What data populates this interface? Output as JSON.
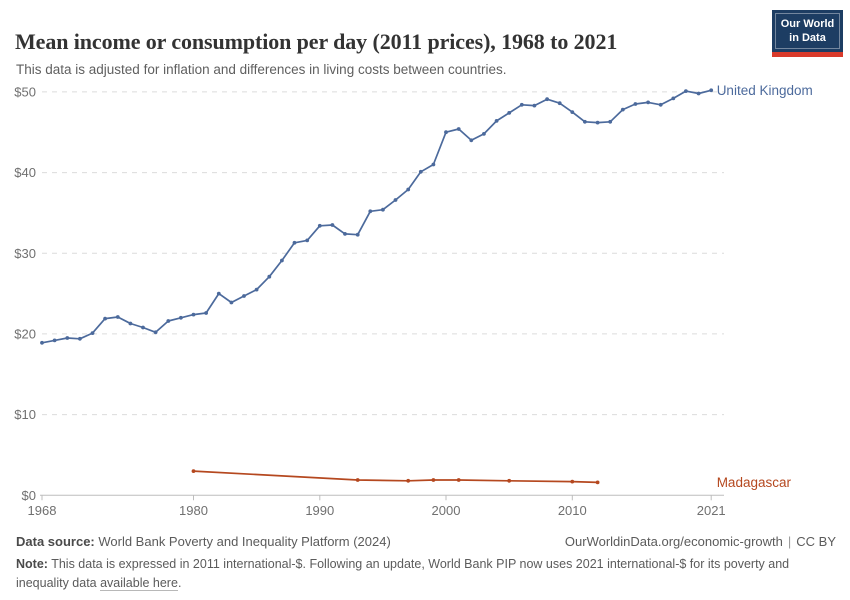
{
  "header": {
    "title": "Mean income or consumption per day (2011 prices), 1968 to 2021",
    "subtitle": "This data is adjusted for inflation and differences in living costs between countries.",
    "logo": {
      "line1": "Our World",
      "line2": "in Data"
    }
  },
  "chart_data": {
    "type": "line",
    "title": "Mean income or consumption per day (2011 prices), 1968 to 2021",
    "xlabel": "",
    "ylabel": "",
    "xlim": [
      1968,
      2021
    ],
    "ylim": [
      0,
      50
    ],
    "grid": "horizontal-dashed",
    "legend_position": "labels-at-right-edge",
    "x_ticks": [
      {
        "value": 1968,
        "label": "1968"
      },
      {
        "value": 1980,
        "label": "1980"
      },
      {
        "value": 1990,
        "label": "1990"
      },
      {
        "value": 2000,
        "label": "2000"
      },
      {
        "value": 2010,
        "label": "2010"
      },
      {
        "value": 2021,
        "label": "2021"
      }
    ],
    "y_ticks": [
      {
        "value": 0,
        "label": "$0"
      },
      {
        "value": 10,
        "label": "$10"
      },
      {
        "value": 20,
        "label": "$20"
      },
      {
        "value": 30,
        "label": "$30"
      },
      {
        "value": 40,
        "label": "$40"
      },
      {
        "value": 50,
        "label": "$50"
      }
    ],
    "series": [
      {
        "name": "United Kingdom",
        "color": "#4c6a9c",
        "x": [
          1968,
          1969,
          1970,
          1971,
          1972,
          1973,
          1974,
          1975,
          1976,
          1977,
          1978,
          1979,
          1980,
          1981,
          1982,
          1983,
          1984,
          1985,
          1986,
          1987,
          1988,
          1989,
          1990,
          1991,
          1992,
          1993,
          1994,
          1995,
          1996,
          1997,
          1998,
          1999,
          2000,
          2001,
          2002,
          2003,
          2004,
          2005,
          2006,
          2007,
          2008,
          2009,
          2010,
          2011,
          2012,
          2013,
          2014,
          2015,
          2016,
          2017,
          2018,
          2019,
          2020,
          2021
        ],
        "values": [
          18.9,
          19.2,
          19.5,
          19.4,
          20.1,
          21.9,
          22.1,
          21.3,
          20.8,
          20.2,
          21.6,
          22.0,
          22.4,
          22.6,
          25.0,
          23.9,
          24.7,
          25.5,
          27.1,
          29.1,
          31.3,
          31.6,
          33.4,
          33.5,
          32.4,
          32.3,
          35.2,
          35.4,
          36.6,
          37.9,
          40.1,
          41.0,
          45.0,
          45.4,
          44.0,
          44.8,
          46.4,
          47.4,
          48.4,
          48.3,
          49.1,
          48.6,
          47.5,
          46.3,
          46.2,
          46.3,
          47.8,
          48.5,
          48.7,
          48.4,
          49.2,
          50.1,
          49.8,
          50.2
        ]
      },
      {
        "name": "Madagascar",
        "color": "#b5481f",
        "x": [
          1980,
          1993,
          1997,
          1999,
          2001,
          2005,
          2010,
          2012
        ],
        "values": [
          3.0,
          1.9,
          1.8,
          1.9,
          1.9,
          1.8,
          1.7,
          1.6
        ]
      }
    ]
  },
  "footer": {
    "source_label": "Data source:",
    "source_value": " World Bank Poverty and Inequality Platform (2024)",
    "url": "OurWorldinData.org/economic-growth",
    "separator": "|",
    "license": "CC BY",
    "note_label": "Note:",
    "note_body": " This data is expressed in 2011 international-$. Following an update, World Bank PIP now uses 2021 international-$ for its poverty and inequality data ",
    "note_link": "available here",
    "note_end": "."
  }
}
